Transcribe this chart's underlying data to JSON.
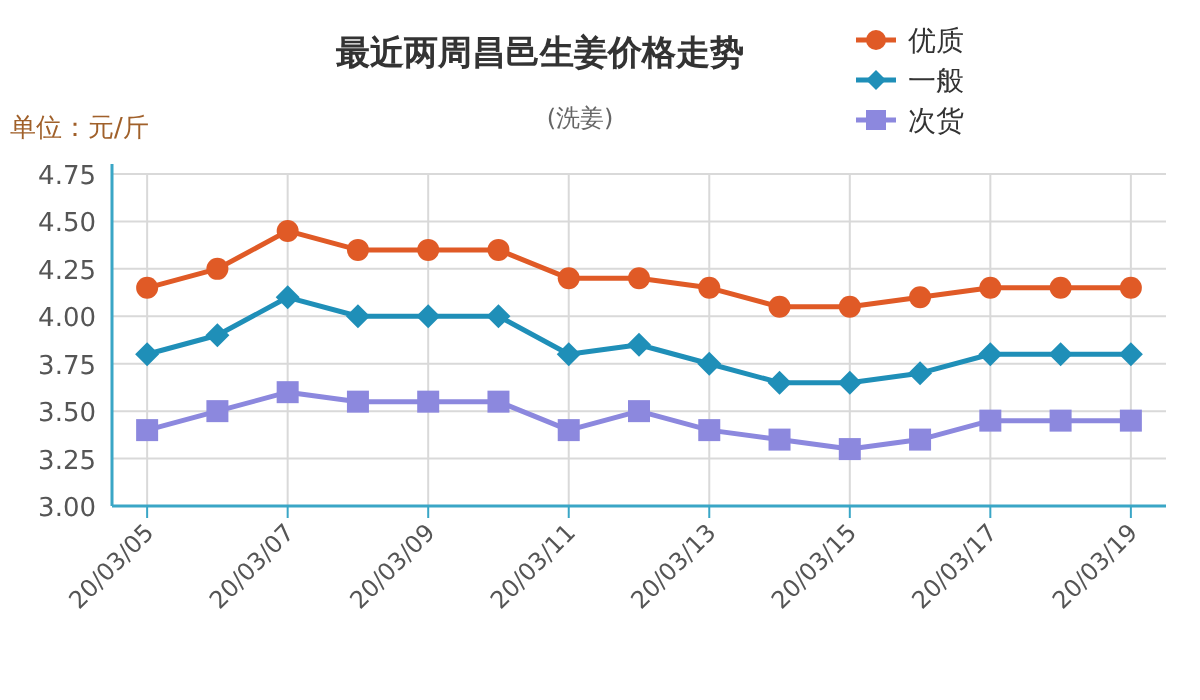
{
  "chart_data": {
    "type": "line",
    "title": "最近两周昌邑生姜价格走势",
    "subtitle": "(洗姜)",
    "ylabel": "单位：元/斤",
    "categories": [
      "20/03/05",
      null,
      "20/03/07",
      null,
      "20/03/09",
      null,
      "20/03/11",
      null,
      "20/03/13",
      null,
      "20/03/15",
      null,
      "20/03/17",
      null,
      "20/03/19"
    ],
    "series": [
      {
        "name": "优质",
        "color": "#e05a26",
        "marker": "circle",
        "values": [
          4.15,
          4.25,
          4.45,
          4.35,
          4.35,
          4.35,
          4.2,
          4.2,
          4.15,
          4.05,
          4.05,
          4.1,
          4.15,
          4.15,
          4.15
        ]
      },
      {
        "name": "一般",
        "color": "#1f8fb8",
        "marker": "diamond",
        "values": [
          3.8,
          3.9,
          4.1,
          4.0,
          4.0,
          4.0,
          3.8,
          3.85,
          3.75,
          3.65,
          3.65,
          3.7,
          3.8,
          3.8,
          3.8
        ]
      },
      {
        "name": "次货",
        "color": "#8c88de",
        "marker": "square",
        "values": [
          3.4,
          3.5,
          3.6,
          3.55,
          3.55,
          3.55,
          3.4,
          3.5,
          3.4,
          3.35,
          3.3,
          3.35,
          3.45,
          3.45,
          3.45
        ]
      }
    ],
    "ylim": [
      3.0,
      4.75
    ],
    "yticks": [
      {
        "value": 3.0,
        "label": "3.00"
      },
      {
        "value": 3.25,
        "label": "3.25"
      },
      {
        "value": 3.5,
        "label": "3.50"
      },
      {
        "value": 3.75,
        "label": "3.75"
      },
      {
        "value": 4.0,
        "label": "4.00"
      },
      {
        "value": 4.25,
        "label": "4.25"
      },
      {
        "value": 4.5,
        "label": "4.50"
      },
      {
        "value": 4.75,
        "label": "4.75"
      }
    ],
    "grid": true,
    "legend": "top right"
  }
}
